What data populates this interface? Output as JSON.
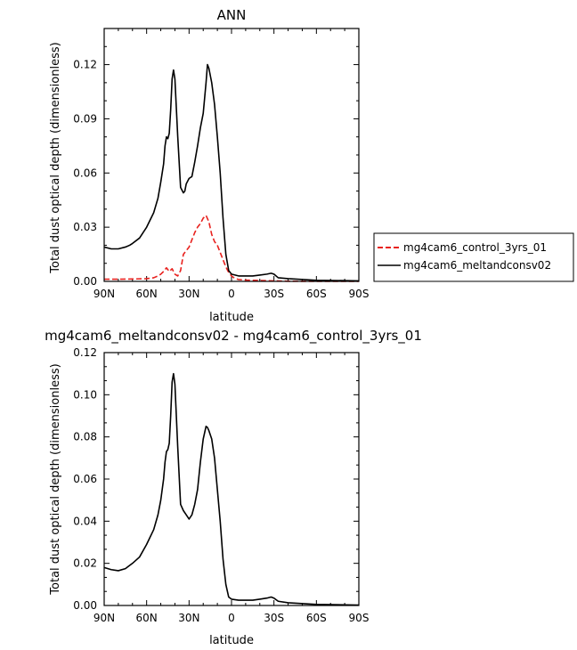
{
  "chart_data": [
    {
      "type": "line",
      "title": "ANN",
      "xlabel": "latitude",
      "ylabel": "Total dust optical depth (dimensionless)",
      "xlim": [
        90,
        -90
      ],
      "ylim": [
        0,
        0.14
      ],
      "x_ticks": [
        90,
        60,
        30,
        0,
        -30,
        -60,
        -90
      ],
      "x_tick_labels": [
        "90N",
        "60N",
        "30N",
        "0",
        "30S",
        "60S",
        "90S"
      ],
      "y_ticks": [
        0,
        0.03,
        0.06,
        0.09,
        0.12
      ],
      "y_tick_labels": [
        "0.00",
        "0.03",
        "0.06",
        "0.09",
        "0.12"
      ],
      "grid": false,
      "legend_position": "right",
      "series": [
        {
          "name": "mg4cam6_control_3yrs_01",
          "color": "#e8211e",
          "dash": "dashed",
          "x": [
            90,
            80,
            70,
            60,
            55,
            52,
            50,
            48,
            46,
            44,
            42,
            40,
            38,
            36,
            34,
            32,
            30,
            28,
            26,
            24,
            22,
            20,
            18,
            16,
            14,
            12,
            10,
            8,
            6,
            4,
            2,
            0,
            -2,
            -5,
            -10,
            -15,
            -20,
            -30,
            -40,
            -60,
            -90
          ],
          "y": [
            0.0012,
            0.0012,
            0.0013,
            0.0015,
            0.002,
            0.003,
            0.004,
            0.0055,
            0.0075,
            0.0055,
            0.007,
            0.004,
            0.003,
            0.006,
            0.015,
            0.017,
            0.019,
            0.023,
            0.027,
            0.03,
            0.032,
            0.035,
            0.0365,
            0.033,
            0.026,
            0.022,
            0.02,
            0.016,
            0.012,
            0.008,
            0.005,
            0.003,
            0.0018,
            0.001,
            0.0007,
            0.0006,
            0.0005,
            0.0003,
            0.0001,
            0.0,
            0.0
          ]
        },
        {
          "name": "mg4cam6_meltandconsv02",
          "color": "#000000",
          "dash": "solid",
          "x": [
            90,
            85,
            80,
            75,
            72,
            70,
            65,
            60,
            55,
            52,
            50,
            48,
            47,
            46,
            45,
            44,
            43,
            42,
            41,
            40,
            38,
            36,
            34,
            33,
            32,
            30,
            28,
            26,
            24,
            22,
            20,
            18,
            17,
            16,
            14,
            12,
            10,
            8,
            6,
            4,
            2,
            0,
            -5,
            -10,
            -15,
            -20,
            -25,
            -28,
            -30,
            -33,
            -40,
            -60,
            -90
          ],
          "y": [
            0.019,
            0.018,
            0.018,
            0.019,
            0.02,
            0.021,
            0.024,
            0.03,
            0.038,
            0.046,
            0.055,
            0.065,
            0.075,
            0.08,
            0.079,
            0.082,
            0.095,
            0.112,
            0.117,
            0.112,
            0.08,
            0.052,
            0.049,
            0.05,
            0.054,
            0.057,
            0.058,
            0.066,
            0.075,
            0.085,
            0.093,
            0.11,
            0.12,
            0.118,
            0.11,
            0.098,
            0.08,
            0.06,
            0.035,
            0.015,
            0.006,
            0.004,
            0.003,
            0.003,
            0.003,
            0.0035,
            0.004,
            0.0045,
            0.004,
            0.002,
            0.0015,
            0.0006,
            0.0003
          ]
        }
      ]
    },
    {
      "type": "line",
      "title": "mg4cam6_meltandconsv02 - mg4cam6_control_3yrs_01",
      "xlabel": "latitude",
      "ylabel": "Total dust optical depth (dimensionless)",
      "xlim": [
        90,
        -90
      ],
      "ylim": [
        0,
        0.12
      ],
      "x_ticks": [
        90,
        60,
        30,
        0,
        -30,
        -60,
        -90
      ],
      "x_tick_labels": [
        "90N",
        "60N",
        "30N",
        "0",
        "30S",
        "60S",
        "90S"
      ],
      "y_ticks": [
        0,
        0.02,
        0.04,
        0.06,
        0.08,
        0.1,
        0.12
      ],
      "y_tick_labels": [
        "0.00",
        "0.02",
        "0.04",
        "0.06",
        "0.08",
        "0.10",
        "0.12"
      ],
      "grid": false,
      "series": [
        {
          "color": "#000000",
          "dash": "solid",
          "x": [
            90,
            85,
            80,
            75,
            72,
            70,
            65,
            60,
            55,
            52,
            50,
            48,
            47,
            46,
            45,
            44,
            43,
            42,
            41,
            40,
            38,
            36,
            34,
            32,
            30,
            28,
            26,
            24,
            22,
            20,
            18,
            17,
            16,
            14,
            12,
            10,
            8,
            6,
            4,
            2,
            0,
            -5,
            -10,
            -15,
            -20,
            -25,
            -28,
            -30,
            -33,
            -40,
            -60,
            -90
          ],
          "y": [
            0.018,
            0.017,
            0.0165,
            0.0175,
            0.019,
            0.02,
            0.023,
            0.029,
            0.036,
            0.043,
            0.05,
            0.06,
            0.068,
            0.073,
            0.074,
            0.077,
            0.09,
            0.106,
            0.11,
            0.105,
            0.075,
            0.048,
            0.045,
            0.043,
            0.041,
            0.043,
            0.048,
            0.055,
            0.068,
            0.079,
            0.085,
            0.0845,
            0.083,
            0.079,
            0.07,
            0.055,
            0.04,
            0.022,
            0.01,
            0.004,
            0.003,
            0.0025,
            0.0025,
            0.0025,
            0.003,
            0.0035,
            0.004,
            0.0035,
            0.002,
            0.0013,
            0.0005,
            0.0002
          ]
        }
      ]
    }
  ]
}
